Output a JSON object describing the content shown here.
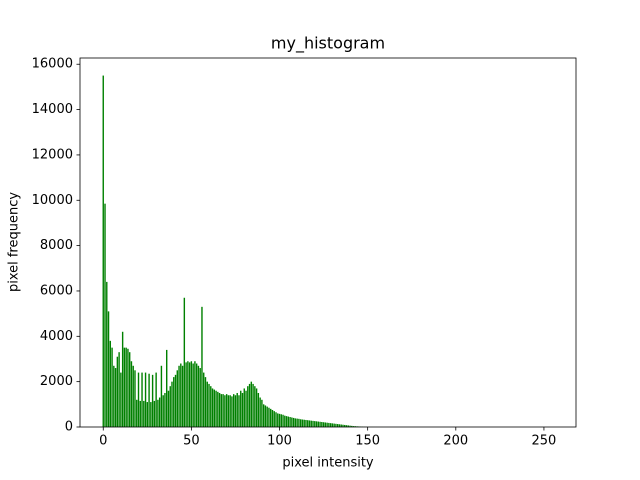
{
  "chart_data": {
    "type": "bar",
    "title": "my_histogram",
    "x_label": "pixel intensity",
    "y_label": "pixel frequency",
    "color": "#008000",
    "bar_width": 0.8,
    "x": [
      0,
      1,
      2,
      3,
      4,
      5,
      6,
      7,
      8,
      9,
      10,
      11,
      12,
      13,
      14,
      15,
      16,
      17,
      18,
      19,
      20,
      21,
      22,
      23,
      24,
      25,
      26,
      27,
      28,
      29,
      30,
      31,
      32,
      33,
      34,
      35,
      36,
      37,
      38,
      39,
      40,
      41,
      42,
      43,
      44,
      45,
      46,
      47,
      48,
      49,
      50,
      51,
      52,
      53,
      54,
      55,
      56,
      57,
      58,
      59,
      60,
      61,
      62,
      63,
      64,
      65,
      66,
      67,
      68,
      69,
      70,
      71,
      72,
      73,
      74,
      75,
      76,
      77,
      78,
      79,
      80,
      81,
      82,
      83,
      84,
      85,
      86,
      87,
      88,
      89,
      90,
      91,
      92,
      93,
      94,
      95,
      96,
      97,
      98,
      99,
      100,
      101,
      102,
      103,
      104,
      105,
      106,
      107,
      108,
      109,
      110,
      111,
      112,
      113,
      114,
      115,
      116,
      117,
      118,
      119,
      120,
      121,
      122,
      123,
      124,
      125,
      126,
      127,
      128,
      129,
      130,
      131,
      132,
      133,
      134,
      135,
      136,
      137,
      138,
      139,
      140,
      141,
      142,
      143,
      144,
      145,
      146,
      147,
      148,
      149,
      150,
      151,
      152,
      153,
      154,
      155,
      156,
      157,
      158,
      159,
      160,
      161,
      162,
      163,
      164,
      165,
      166,
      167,
      168,
      169,
      170,
      171,
      172,
      173,
      174,
      175,
      176,
      177,
      178,
      179,
      180,
      181,
      182,
      183,
      184,
      185,
      186,
      187,
      188,
      189,
      190,
      191,
      192,
      193,
      194,
      195,
      196,
      197,
      198,
      199,
      200,
      201,
      202,
      203,
      204,
      205,
      206,
      207,
      208,
      209,
      210,
      211,
      212,
      213,
      214,
      215,
      216,
      217,
      218,
      219,
      220,
      221,
      222,
      223,
      224,
      225,
      226,
      227,
      228,
      229,
      230,
      231,
      232,
      233,
      234,
      235,
      236,
      237,
      238,
      239,
      240,
      241,
      242,
      243,
      244,
      245,
      246,
      247,
      248,
      249,
      250,
      251,
      252,
      253,
      254,
      255
    ],
    "values": [
      15500,
      9850,
      6400,
      5100,
      3800,
      3500,
      2700,
      2600,
      3100,
      3300,
      2400,
      4200,
      3500,
      3500,
      3450,
      3300,
      2900,
      2700,
      2500,
      1200,
      2400,
      1150,
      2400,
      1150,
      2400,
      1100,
      2350,
      1100,
      2300,
      1150,
      2400,
      1200,
      1300,
      2700,
      1400,
      1500,
      3400,
      1600,
      1800,
      2000,
      2200,
      2300,
      2500,
      2700,
      2800,
      2700,
      5700,
      2850,
      2900,
      2850,
      2900,
      2800,
      2900,
      2800,
      2700,
      2600,
      5300,
      2400,
      2200,
      2000,
      1900,
      1800,
      1700,
      1650,
      1600,
      1550,
      1500,
      1450,
      1450,
      1400,
      1450,
      1400,
      1400,
      1350,
      1450,
      1400,
      1500,
      1400,
      1600,
      1500,
      1700,
      1600,
      1800,
      1900,
      2000,
      1900,
      1800,
      1700,
      1500,
      1300,
      1200,
      1000,
      950,
      900,
      850,
      800,
      750,
      700,
      650,
      600,
      580,
      560,
      540,
      500,
      480,
      460,
      440,
      420,
      400,
      380,
      370,
      360,
      340,
      330,
      320,
      310,
      300,
      290,
      280,
      270,
      260,
      250,
      240,
      230,
      220,
      210,
      200,
      190,
      180,
      170,
      160,
      150,
      140,
      130,
      120,
      110,
      100,
      90,
      80,
      70,
      60,
      50,
      40,
      35,
      30,
      25,
      20,
      15,
      10,
      8,
      5,
      4,
      3,
      3,
      2,
      2,
      1,
      1,
      1,
      0,
      0,
      0,
      0,
      0,
      0,
      0,
      0,
      0,
      0,
      0,
      0,
      0,
      0,
      0,
      0,
      0,
      0,
      0,
      0,
      0,
      0,
      0,
      0,
      0,
      0,
      0,
      0,
      0,
      0,
      0,
      0,
      0,
      0,
      0,
      0,
      0,
      0,
      0,
      0,
      0,
      0,
      0,
      0,
      0,
      0,
      0,
      0,
      0,
      0,
      0,
      0,
      0,
      0,
      0,
      0,
      0,
      0,
      0,
      0,
      0,
      0,
      0,
      0,
      0,
      0,
      0,
      0,
      0,
      0,
      0,
      0,
      0,
      0,
      0,
      0,
      0,
      0,
      0,
      0,
      0,
      0,
      0,
      0,
      0,
      0,
      0,
      0,
      0,
      0,
      0,
      0,
      0,
      0,
      0,
      0,
      0
    ],
    "xlim": [
      -13.19,
      268.19
    ],
    "xticks": [
      0,
      50,
      100,
      150,
      200,
      250
    ],
    "ylim": [
      0,
      16275
    ],
    "yticks": [
      0,
      2000,
      4000,
      6000,
      8000,
      10000,
      12000,
      14000,
      16000
    ],
    "grid": false
  }
}
